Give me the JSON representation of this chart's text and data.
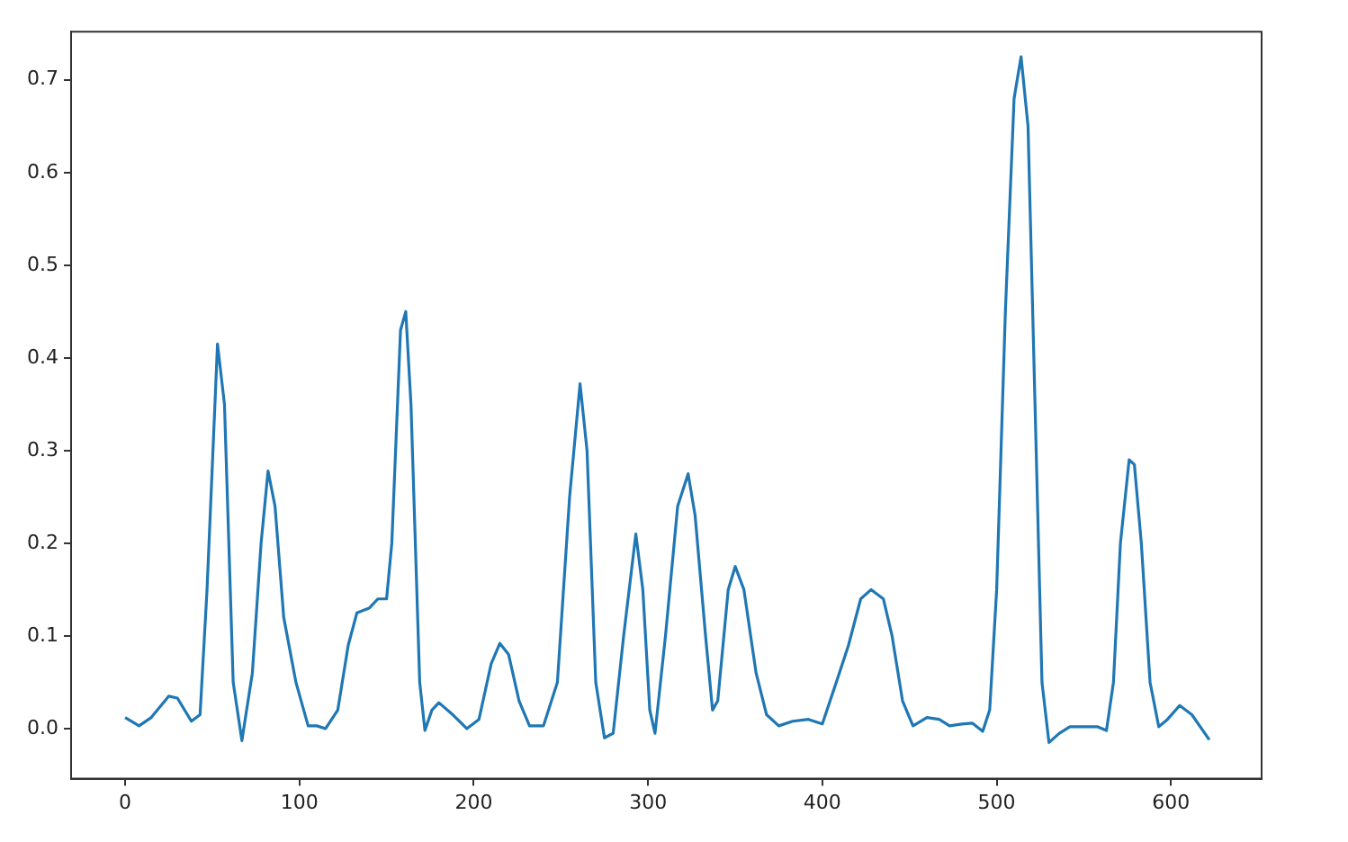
{
  "chart_data": {
    "type": "line",
    "color": "#1f77b4",
    "marker": "none",
    "line_style": "solid",
    "grid": false,
    "legend": false,
    "xlim": [
      -31,
      652
    ],
    "xticks": [
      0,
      100,
      200,
      300,
      400,
      500,
      600
    ],
    "ylim": [
      -0.054,
      0.752
    ],
    "yticks": [
      {
        "value": 0,
        "label": "0.0"
      },
      0.1,
      0.2,
      0.3,
      0.4,
      0.5,
      0.6,
      0.7
    ],
    "x": [
      0,
      8,
      15,
      25,
      30,
      38,
      43,
      47,
      53,
      57,
      62,
      67,
      73,
      78,
      82,
      86,
      91,
      98,
      105,
      110,
      115,
      122,
      128,
      133,
      140,
      145,
      150,
      153,
      158,
      161,
      164,
      169,
      172,
      176,
      180,
      188,
      196,
      203,
      210,
      215,
      220,
      226,
      232,
      240,
      248,
      255,
      261,
      265,
      270,
      275,
      280,
      286,
      293,
      297,
      301,
      304,
      310,
      317,
      323,
      327,
      333,
      337,
      340,
      346,
      350,
      355,
      362,
      368,
      375,
      383,
      392,
      400,
      408,
      415,
      422,
      428,
      435,
      440,
      446,
      452,
      460,
      467,
      473,
      480,
      486,
      492,
      496,
      500,
      505,
      510,
      514,
      518,
      522,
      526,
      530,
      536,
      542,
      550,
      558,
      563,
      567,
      571,
      576,
      579,
      583,
      588,
      593,
      598,
      605,
      612,
      622
    ],
    "values": [
      0.012,
      0.003,
      0.012,
      0.035,
      0.033,
      0.008,
      0.015,
      0.15,
      0.415,
      0.35,
      0.05,
      -0.013,
      0.06,
      0.2,
      0.278,
      0.24,
      0.12,
      0.05,
      0.003,
      0.003,
      0,
      0.02,
      0.09,
      0.125,
      0.13,
      0.14,
      0.14,
      0.2,
      0.43,
      0.45,
      0.35,
      0.05,
      -0.002,
      0.02,
      0.028,
      0.015,
      0,
      0.01,
      0.07,
      0.092,
      0.08,
      0.03,
      0.003,
      0.003,
      0.05,
      0.25,
      0.372,
      0.3,
      0.05,
      -0.01,
      -0.005,
      0.1,
      0.21,
      0.15,
      0.02,
      -0.005,
      0.1,
      0.24,
      0.275,
      0.23,
      0.1,
      0.02,
      0.03,
      0.15,
      0.175,
      0.15,
      0.06,
      0.015,
      0.003,
      0.008,
      0.01,
      0.005,
      0.05,
      0.09,
      0.14,
      0.15,
      0.14,
      0.1,
      0.03,
      0.003,
      0.012,
      0.01,
      0.003,
      0.005,
      0.006,
      -0.003,
      0.02,
      0.15,
      0.45,
      0.68,
      0.725,
      0.65,
      0.35,
      0.05,
      -0.015,
      -0.005,
      0.002,
      0.002,
      0.002,
      -0.002,
      0.05,
      0.2,
      0.29,
      0.285,
      0.2,
      0.05,
      0.002,
      0.01,
      0.025,
      0.015,
      -0.012
    ]
  }
}
